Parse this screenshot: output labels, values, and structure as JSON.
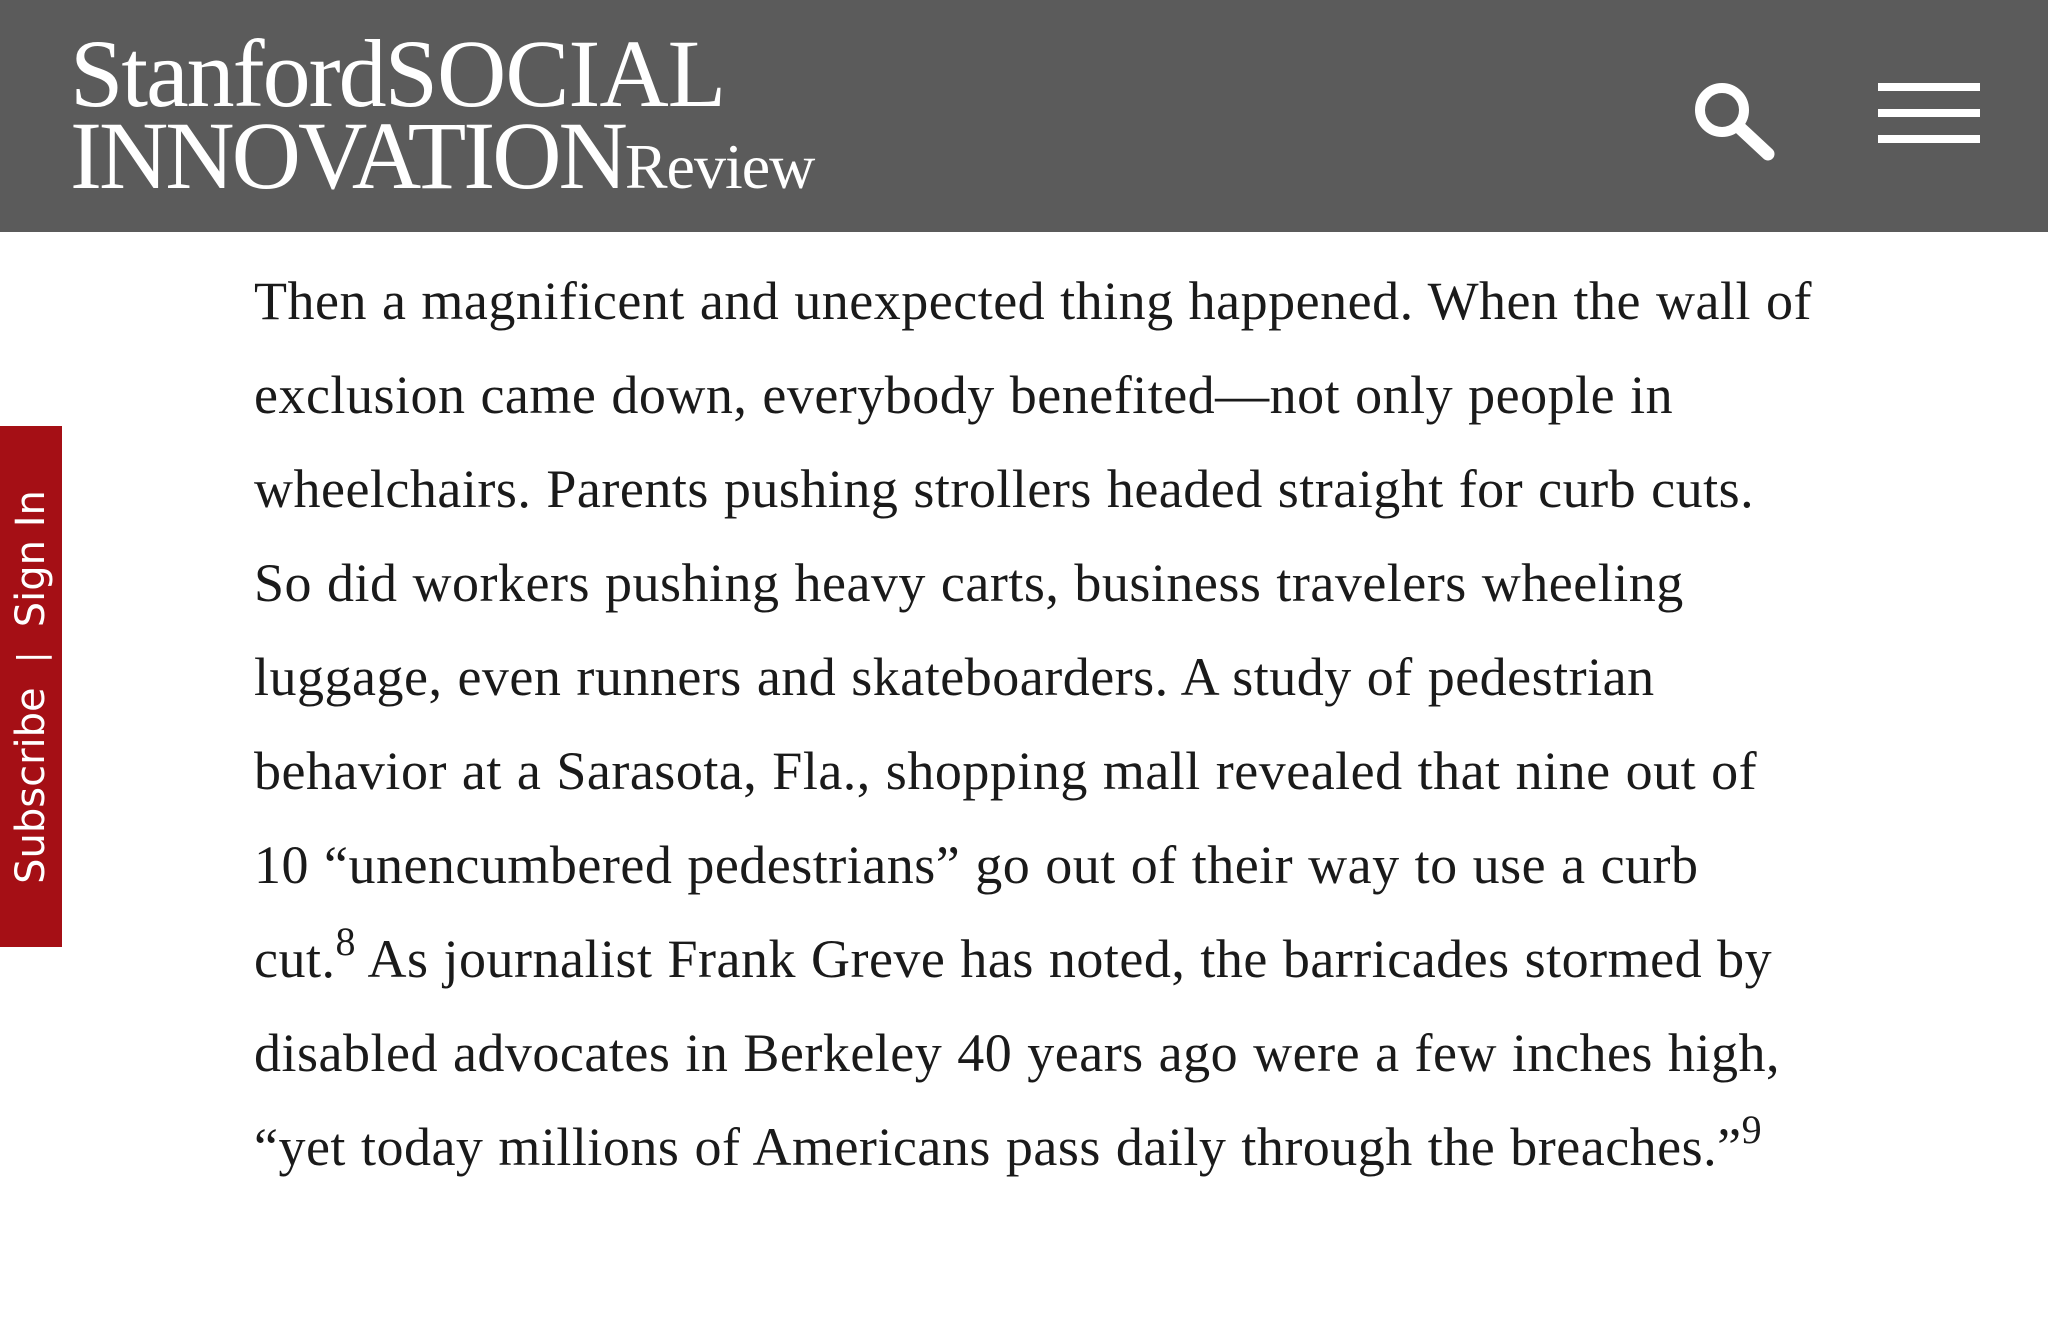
{
  "header": {
    "logo": {
      "stanford": "Stanford",
      "social": "SOCIAL",
      "innovation": "INNOVATION",
      "review": "Review"
    },
    "search_icon": "search-icon",
    "menu_icon": "hamburger-menu-icon"
  },
  "side_tab": {
    "subscribe": "Subscribe",
    "separator": "|",
    "sign_in": "Sign In"
  },
  "article": {
    "paragraph_part1": "Then a magnificent and unexpected thing happened. When the wall of exclusion came down, everybody benefited—not only people in wheelchairs. Parents pushing strollers headed straight for curb cuts. So did workers pushing heavy carts, business travelers wheeling luggage, even runners and skateboarders. A study of pedestrian behavior at a Sarasota, Fla., shopping mall revealed that nine out of 10 “unencumbered pedestrians” go out of their way to use a curb cut.",
    "footnote_1": "8",
    "paragraph_part2": " As journalist Frank Greve has noted, the barricades stormed by disabled advocates in Berkeley 40 years ago were a few inches high, “yet today millions of Americans pass daily through the breaches.”",
    "footnote_2": "9"
  },
  "colors": {
    "header_background": "#5b5b5b",
    "side_tab_background": "#a50f15",
    "body_text": "#1a1a1a",
    "page_background": "#ffffff"
  }
}
